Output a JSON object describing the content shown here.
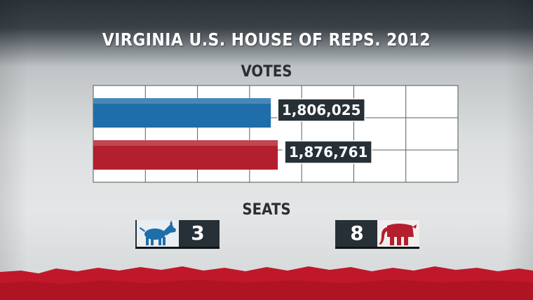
{
  "title": "VIRGINIA U.S. HOUSE OF REPS. 2012",
  "votes_label": "VOTES",
  "seats_label": "SEATS",
  "colors": {
    "democrat": "#1f6eaa",
    "republican": "#b31f2c",
    "label_box": "#263036"
  },
  "seats": {
    "democrat": {
      "value": "3",
      "icon": "donkey-icon"
    },
    "republican": {
      "value": "8",
      "icon": "elephant-icon"
    }
  },
  "chart_data": {
    "type": "bar",
    "orientation": "horizontal",
    "grid": true,
    "series": [
      {
        "value": 1806025,
        "label": "1,806,025",
        "color": "#1f6eaa"
      },
      {
        "value": 1876761,
        "label": "1,876,761",
        "color": "#b31f2c"
      }
    ]
  }
}
